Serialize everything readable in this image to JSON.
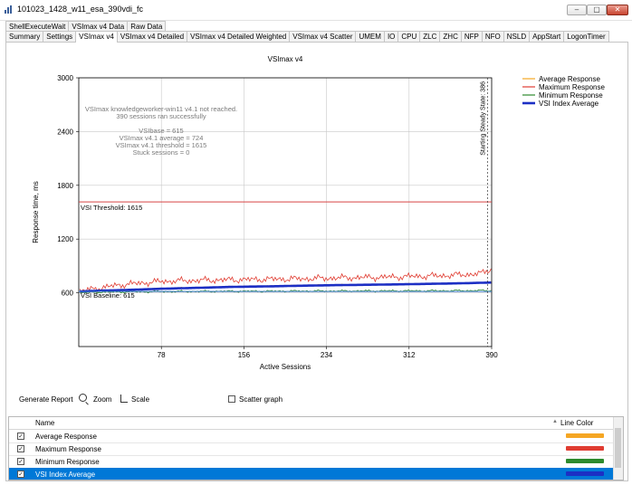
{
  "window": {
    "title": "101023_1428_w11_esa_390vdi_fc",
    "minimize_glyph": "–",
    "restore_glyph": "▢",
    "close_glyph": "✕"
  },
  "tabs_top": [
    "ShellExecuteWait",
    "VSImax v4 Data",
    "Raw Data"
  ],
  "tabs_main": [
    "Summary",
    "Settings",
    "VSImax v4",
    "VSImax v4 Detailed",
    "VSImax v4 Detailed Weighted",
    "VSImax v4 Scatter",
    "UMEM",
    "IO",
    "CPU",
    "ZLC",
    "ZHC",
    "NFP",
    "NFO",
    "NSLD",
    "AppStart",
    "LogonTimer"
  ],
  "active_tab": "VSImax v4",
  "chart_data": {
    "type": "line",
    "title": "VSImax v4",
    "xlabel": "Active Sessions",
    "ylabel": "Response time, ms",
    "xlim": [
      0,
      390
    ],
    "ylim": [
      0,
      3000
    ],
    "x_ticks": [
      78,
      156,
      234,
      312,
      390
    ],
    "y_ticks": [
      600,
      1200,
      1800,
      2400,
      3000
    ],
    "grid": true,
    "legend_position": "right",
    "annotations": [
      "VSImax knowledgeworker-win11 v4.1 not reached.",
      "390 sessions ran successfully",
      "VSIbase = 615",
      "VSImax v4.1 average = 724",
      "VSImax v4.1 threshold = 1615",
      "Stuck sessions = 0"
    ],
    "threshold": {
      "label": "VSI Threshold: 1615",
      "value": 1615,
      "color": "#d84545"
    },
    "baseline": {
      "label": "VSI Baseline: 615",
      "value": 615,
      "color": "#3a78c9"
    },
    "steady_state": {
      "label": "Starting Steady State: 386",
      "x": 386
    },
    "series": [
      {
        "name": "Average Response",
        "color": "#f5a623",
        "points": [
          [
            1,
            610
          ],
          [
            20,
            625
          ],
          [
            40,
            632
          ],
          [
            60,
            640
          ],
          [
            80,
            650
          ],
          [
            100,
            655
          ],
          [
            120,
            660
          ],
          [
            140,
            668
          ],
          [
            160,
            672
          ],
          [
            180,
            675
          ],
          [
            200,
            680
          ],
          [
            220,
            684
          ],
          [
            240,
            688
          ],
          [
            260,
            690
          ],
          [
            280,
            693
          ],
          [
            300,
            697
          ],
          [
            320,
            700
          ],
          [
            340,
            703
          ],
          [
            360,
            707
          ],
          [
            380,
            710
          ],
          [
            390,
            714
          ]
        ]
      },
      {
        "name": "Maximum Response",
        "color": "#e03c31",
        "points": [
          [
            1,
            618
          ],
          [
            20,
            655
          ],
          [
            40,
            690
          ],
          [
            60,
            710
          ],
          [
            80,
            728
          ],
          [
            100,
            735
          ],
          [
            120,
            740
          ],
          [
            140,
            745
          ],
          [
            160,
            748
          ],
          [
            180,
            752
          ],
          [
            200,
            755
          ],
          [
            220,
            758
          ],
          [
            240,
            765
          ],
          [
            260,
            770
          ],
          [
            280,
            772
          ],
          [
            300,
            778
          ],
          [
            320,
            785
          ],
          [
            340,
            790
          ],
          [
            360,
            800
          ],
          [
            380,
            815
          ],
          [
            390,
            870
          ]
        ]
      },
      {
        "name": "Minimum Response",
        "color": "#2d8a2d",
        "points": [
          [
            1,
            600
          ],
          [
            20,
            608
          ],
          [
            40,
            610
          ],
          [
            60,
            612
          ],
          [
            80,
            614
          ],
          [
            100,
            615
          ],
          [
            120,
            616
          ],
          [
            140,
            617
          ],
          [
            160,
            618
          ],
          [
            180,
            618
          ],
          [
            200,
            619
          ],
          [
            220,
            620
          ],
          [
            240,
            620
          ],
          [
            260,
            621
          ],
          [
            280,
            621
          ],
          [
            300,
            622
          ],
          [
            320,
            622
          ],
          [
            340,
            623
          ],
          [
            360,
            624
          ],
          [
            380,
            625
          ],
          [
            390,
            626
          ]
        ]
      },
      {
        "name": "VSI Index Average",
        "color": "#1c2fc4",
        "points": [
          [
            1,
            615
          ],
          [
            20,
            624
          ],
          [
            40,
            630
          ],
          [
            60,
            638
          ],
          [
            80,
            646
          ],
          [
            100,
            652
          ],
          [
            120,
            658
          ],
          [
            140,
            665
          ],
          [
            160,
            669
          ],
          [
            180,
            672
          ],
          [
            200,
            677
          ],
          [
            220,
            681
          ],
          [
            240,
            685
          ],
          [
            260,
            688
          ],
          [
            280,
            691
          ],
          [
            300,
            694
          ],
          [
            320,
            698
          ],
          [
            340,
            702
          ],
          [
            360,
            706
          ],
          [
            380,
            712
          ],
          [
            390,
            715
          ]
        ]
      }
    ]
  },
  "toolbar": {
    "generate_report": "Generate Report",
    "zoom": "Zoom",
    "scale": "Scale",
    "scatter_graph": "Scatter graph"
  },
  "grid": {
    "col_name": "Name",
    "col_color": "Line Color",
    "sort_glyph": "▲",
    "rows": [
      {
        "name": "Average Response",
        "color": "#f5a623",
        "checked": true,
        "selected": false
      },
      {
        "name": "Maximum Response",
        "color": "#e03c31",
        "checked": true,
        "selected": false
      },
      {
        "name": "Minimum Response",
        "color": "#2d8a2d",
        "checked": true,
        "selected": false
      },
      {
        "name": "VSI Index Average",
        "color": "#1c2fc4",
        "checked": true,
        "selected": true
      }
    ]
  },
  "check_glyph": "✓"
}
